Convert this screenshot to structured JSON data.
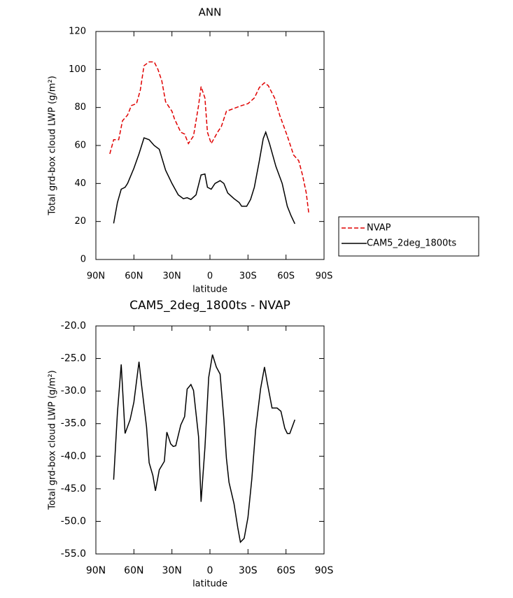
{
  "chart_data": [
    {
      "type": "line",
      "title": "ANN",
      "xlabel": "latitude",
      "ylabel": "Total grd-box cloud LWP (g/m²)",
      "xlim": [
        90,
        -90
      ],
      "ylim": [
        0,
        120
      ],
      "xticks": [
        {
          "value": 90,
          "label": "90N"
        },
        {
          "value": 60,
          "label": "60N"
        },
        {
          "value": 30,
          "label": "30N"
        },
        0,
        {
          "value": -30,
          "label": "30S"
        },
        {
          "value": -60,
          "label": "60S"
        },
        {
          "value": -90,
          "label": "90S"
        }
      ],
      "yticks": [
        0,
        20,
        40,
        60,
        80,
        100,
        120
      ],
      "legend": "outside-right",
      "series": [
        {
          "name": "NVAP",
          "color": "#e00000",
          "linestyle": "dashed",
          "x": [
            79,
            76,
            72,
            69,
            65,
            62,
            58,
            55,
            52,
            48,
            44,
            41,
            38,
            35,
            30,
            28,
            23,
            20,
            17,
            13,
            9,
            7,
            4,
            2,
            -1,
            -6,
            -9,
            -13,
            -19,
            -25,
            -30,
            -35,
            -39,
            -43,
            -46,
            -51,
            -55,
            -61,
            -66,
            -70,
            -73,
            -76,
            -78
          ],
          "values": [
            55.6,
            63,
            63,
            73,
            76,
            81,
            82,
            89,
            102,
            104,
            104,
            100,
            94,
            83,
            78,
            74,
            67,
            66,
            61,
            65,
            81,
            91,
            85,
            67,
            61,
            67,
            70,
            78,
            79.5,
            81,
            82,
            85,
            90.5,
            93,
            91.5,
            85,
            76,
            65,
            55,
            52,
            44.5,
            35,
            24
          ]
        },
        {
          "name": "CAM5_2deg_1800ts",
          "color": "#000000",
          "linestyle": "solid",
          "x": [
            76,
            73,
            70,
            67,
            65,
            60,
            56,
            52,
            48,
            44,
            40,
            35,
            30,
            25,
            21,
            18,
            15,
            11,
            7,
            4,
            2,
            -1,
            -4,
            -8,
            -11,
            -14,
            -19,
            -23,
            -25,
            -29,
            -32,
            -35,
            -39,
            -42,
            -44,
            -47,
            -52,
            -57,
            -61,
            -64,
            -67
          ],
          "values": [
            19,
            30,
            37,
            38,
            40,
            48,
            55.6,
            64,
            63,
            60,
            58,
            47,
            40,
            34,
            32,
            32.5,
            31.6,
            34,
            44.5,
            45,
            38,
            37,
            40,
            41.5,
            40,
            35,
            32,
            30,
            28,
            28,
            31.6,
            38,
            52,
            63.6,
            67,
            61,
            49,
            40,
            28,
            23,
            18.8
          ]
        }
      ]
    },
    {
      "type": "line",
      "title": "CAM5_2deg_1800ts - NVAP",
      "xlabel": "latitude",
      "ylabel": "Total grd-box cloud LWP (g/m²)",
      "xlim": [
        90,
        -90
      ],
      "ylim": [
        -55,
        -20
      ],
      "xticks": [
        {
          "value": 90,
          "label": "90N"
        },
        {
          "value": 60,
          "label": "60N"
        },
        {
          "value": 30,
          "label": "30N"
        },
        0,
        {
          "value": -30,
          "label": "30S"
        },
        {
          "value": -60,
          "label": "60S"
        },
        {
          "value": -90,
          "label": "90S"
        }
      ],
      "yticks": [
        {
          "value": -55,
          "label": "-55.0"
        },
        {
          "value": -50,
          "label": "-50.0"
        },
        {
          "value": -45,
          "label": "-45.0"
        },
        {
          "value": -40,
          "label": "-40.0"
        },
        {
          "value": -35,
          "label": "-35.0"
        },
        {
          "value": -30,
          "label": "-30.0"
        },
        {
          "value": -25,
          "label": "-25.0"
        },
        {
          "value": -20,
          "label": "-20.0"
        }
      ],
      "series": [
        {
          "color": "#000000",
          "linestyle": "solid",
          "x": [
            76,
            73,
            70,
            67,
            63,
            60,
            56,
            54,
            50,
            48,
            45,
            43,
            40,
            36,
            34,
            31,
            29,
            27,
            23,
            20,
            18,
            15,
            13,
            9,
            7,
            4,
            1,
            -2,
            -5,
            -8,
            -11,
            -13,
            -15,
            -19,
            -22,
            -24,
            -27,
            -30,
            -33,
            -36,
            -40,
            -43,
            -45,
            -49,
            -53,
            -56,
            -59,
            -61,
            -63,
            -67
          ],
          "values": [
            -43.6,
            -33.3,
            -25.9,
            -36.5,
            -34.4,
            -31.7,
            -25.5,
            -29,
            -35.5,
            -41,
            -43,
            -45.3,
            -42.1,
            -40.8,
            -36.3,
            -38.1,
            -38.5,
            -38.4,
            -35.2,
            -33.9,
            -29.7,
            -29,
            -29.9,
            -37,
            -47,
            -38.7,
            -27.9,
            -24.4,
            -26.3,
            -27.4,
            -34.4,
            -40.3,
            -44,
            -47.3,
            -51,
            -53.2,
            -52.6,
            -49.4,
            -43.5,
            -36,
            -29.6,
            -26.3,
            -28.5,
            -32.6,
            -32.6,
            -33.1,
            -35.7,
            -36.5,
            -36.5,
            -34.4
          ]
        }
      ]
    }
  ]
}
